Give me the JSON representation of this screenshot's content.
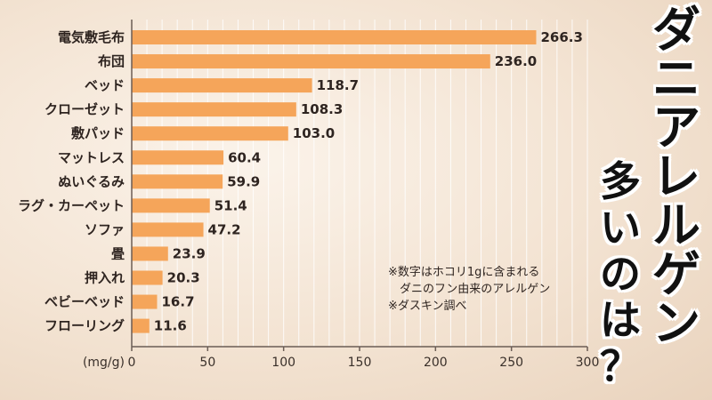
{
  "chart_data": {
    "type": "bar",
    "orientation": "horizontal",
    "categories": [
      "電気敷毛布",
      "布団",
      "ベッド",
      "クローゼット",
      "敷パッド",
      "マットレス",
      "ぬいぐるみ",
      "ラグ・カーペット",
      "ソファ",
      "畳",
      "押入れ",
      "ベビーベッド",
      "フローリング"
    ],
    "values": [
      266.3,
      236.0,
      118.7,
      108.3,
      103.0,
      60.4,
      59.9,
      51.4,
      47.2,
      23.9,
      20.3,
      16.7,
      11.6
    ],
    "value_labels": [
      "266.3",
      "236.0",
      "118.7",
      "108.3",
      "103.0",
      "60.4",
      "59.9",
      "51.4",
      "47.2",
      "23.9",
      "20.3",
      "16.7",
      "11.6"
    ],
    "xlim": [
      0,
      300
    ],
    "xticks": [
      "0",
      "50",
      "100",
      "150",
      "200",
      "250",
      "300"
    ],
    "xunit": "(mg/g)",
    "grid": "vertical minor lines",
    "bar_color": "#f5a55a",
    "axis_color": "#6b5d55"
  },
  "notes": [
    "※数字はホコリ1gに含まれる",
    "ダニのフン由来のアレルゲン",
    "※ダスキン調べ"
  ],
  "title": {
    "line1": [
      "ダ",
      "ニ",
      "ア",
      "レ",
      "ル",
      "ゲ",
      "ン"
    ],
    "line2": [
      "多",
      "い",
      "の",
      "は",
      "？"
    ]
  }
}
